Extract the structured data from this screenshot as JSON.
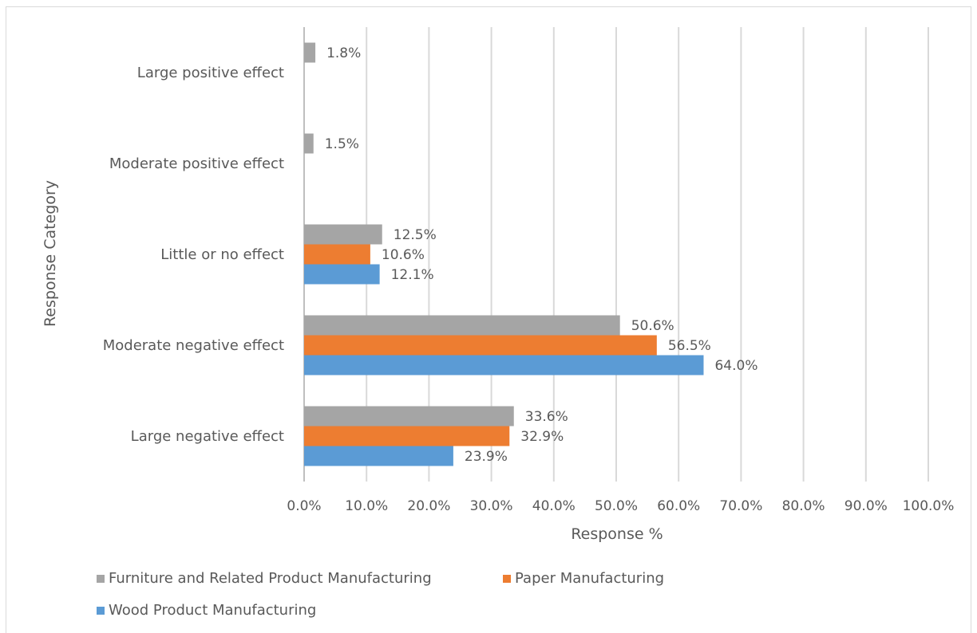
{
  "chart_data": {
    "type": "bar",
    "orientation": "horizontal",
    "title": "",
    "xlabel": "Response %",
    "ylabel": "Response Category",
    "categories": [
      "Large positive effect",
      "Moderate positive effect",
      "Little or no effect",
      "Moderate negative effect",
      "Large negative effect"
    ],
    "series": [
      {
        "name": "Furniture and Related Product Manufacturing",
        "color": "#a5a5a5",
        "values": [
          1.8,
          1.5,
          12.5,
          50.6,
          33.6
        ],
        "labels": [
          "1.8%",
          "1.5%",
          "12.5%",
          "50.6%",
          "33.6%"
        ]
      },
      {
        "name": "Paper Manufacturing",
        "color": "#ed7d31",
        "values": [
          null,
          null,
          10.6,
          56.5,
          32.9
        ],
        "labels": [
          "",
          "",
          "10.6%",
          "56.5%",
          "32.9%"
        ]
      },
      {
        "name": "Wood Product Manufacturing",
        "color": "#5b9bd5",
        "values": [
          null,
          null,
          12.1,
          64.0,
          23.9
        ],
        "labels": [
          "",
          "",
          "12.1%",
          "64.0%",
          "23.9%"
        ]
      }
    ],
    "xlim": [
      0,
      100
    ],
    "xticks": [
      "0.0%",
      "10.0%",
      "20.0%",
      "30.0%",
      "40.0%",
      "50.0%",
      "60.0%",
      "70.0%",
      "80.0%",
      "90.0%",
      "100.0%"
    ],
    "grid": "vertical",
    "legend": "bottom-left"
  }
}
